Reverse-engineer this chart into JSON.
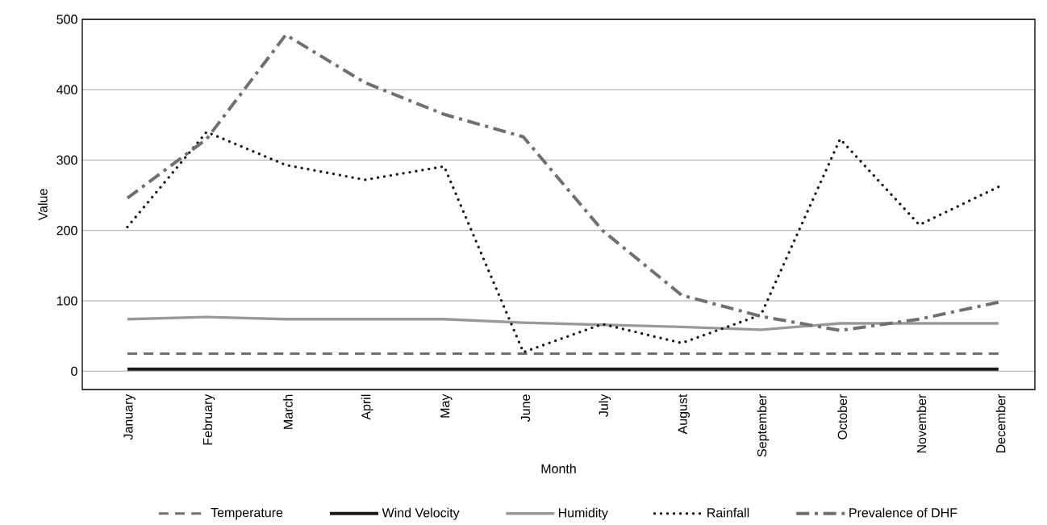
{
  "chart_data": {
    "type": "line",
    "xlabel": "Month",
    "ylabel": "Value",
    "categories": [
      "January",
      "February",
      "March",
      "April",
      "May",
      "June",
      "July",
      "August",
      "September",
      "October",
      "November",
      "December"
    ],
    "ylim": [
      -26,
      500
    ],
    "yticks": [
      0,
      100,
      200,
      300,
      400,
      500
    ],
    "grid": "y",
    "legend": "bottom",
    "series": [
      {
        "name": "Temperature",
        "color": "#707070",
        "line_style": "dashed",
        "values": [
          25,
          25,
          25,
          25,
          25,
          25,
          25,
          25,
          25,
          25,
          25,
          25
        ]
      },
      {
        "name": "Wind Velocity",
        "color": "#1a1a1a",
        "line_style": "solid",
        "values": [
          3,
          3,
          3,
          3,
          3,
          3,
          3,
          3,
          3,
          3,
          3,
          3
        ]
      },
      {
        "name": "Humidity",
        "color": "#999999",
        "line_style": "solid",
        "values": [
          74,
          77,
          74,
          74,
          74,
          69,
          66,
          63,
          59,
          68,
          68,
          68
        ]
      },
      {
        "name": "Rainfall",
        "color": "#1a1a1a",
        "line_style": "dotted",
        "values": [
          205,
          340,
          293,
          272,
          291,
          27,
          67,
          40,
          80,
          330,
          208,
          262
        ]
      },
      {
        "name": "Prevalence of DHF",
        "color": "#707070",
        "line_style": "dashdot",
        "values": [
          246,
          330,
          478,
          410,
          365,
          333,
          200,
          108,
          78,
          58,
          74,
          98
        ]
      }
    ]
  }
}
